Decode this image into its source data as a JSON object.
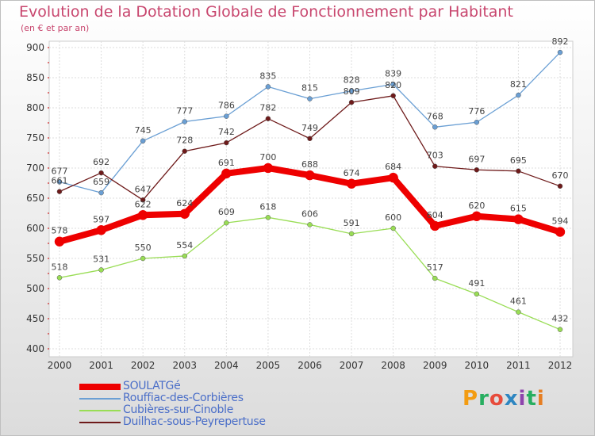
{
  "header": {
    "title": "Evolution de la Dotation Globale de Fonctionnement par Habitant",
    "subtitle": "(en € et par an)"
  },
  "logo": {
    "text": "Proxiti",
    "colors": [
      "#f39c12",
      "#27ae60",
      "#e74c3c",
      "#2e86c1",
      "#8e44ad",
      "#27ae60",
      "#e67e22"
    ]
  },
  "chart_data": {
    "type": "line",
    "title": "Evolution de la Dotation Globale de Fonctionnement par Habitant",
    "subtitle": "(en € et par an)",
    "x": [
      "2000",
      "2001",
      "2002",
      "2003",
      "2004",
      "2005",
      "2006",
      "2007",
      "2008",
      "2009",
      "2010",
      "2011",
      "2012"
    ],
    "ylim": [
      400,
      900
    ],
    "yticks": [
      400,
      450,
      500,
      550,
      600,
      650,
      700,
      750,
      800,
      850,
      900
    ],
    "grid": true,
    "legend_position": "bottom-left",
    "series": [
      {
        "name": "Rouffiac-des-Corbières",
        "color": "#6a9fd4",
        "values": [
          677,
          659,
          745,
          777,
          786,
          835,
          815,
          828,
          839,
          768,
          776,
          821,
          892
        ]
      },
      {
        "name": "Duilhac-sous-Peyrepertuse",
        "color": "#6e1a1a",
        "values": [
          661,
          692,
          647,
          728,
          742,
          782,
          749,
          809,
          820,
          703,
          697,
          695,
          670
        ]
      },
      {
        "name": "Cubières-sur-Cinoble",
        "color": "#99dd55",
        "values": [
          518,
          531,
          550,
          554,
          609,
          618,
          606,
          591,
          600,
          517,
          491,
          461,
          432
        ]
      },
      {
        "name": "SOULATGé",
        "color": "#ee0000",
        "values": [
          578,
          597,
          622,
          624,
          691,
          700,
          688,
          674,
          684,
          604,
          620,
          615,
          594
        ]
      }
    ]
  },
  "legend": {
    "items": [
      {
        "label": "SOULATGé",
        "color": "#ee0000"
      },
      {
        "label": "Rouffiac-des-Corbières",
        "color": "#6a9fd4"
      },
      {
        "label": "Cubières-sur-Cinoble",
        "color": "#99dd55"
      },
      {
        "label": "Duilhac-sous-Peyrepertuse",
        "color": "#6e1a1a"
      }
    ]
  }
}
